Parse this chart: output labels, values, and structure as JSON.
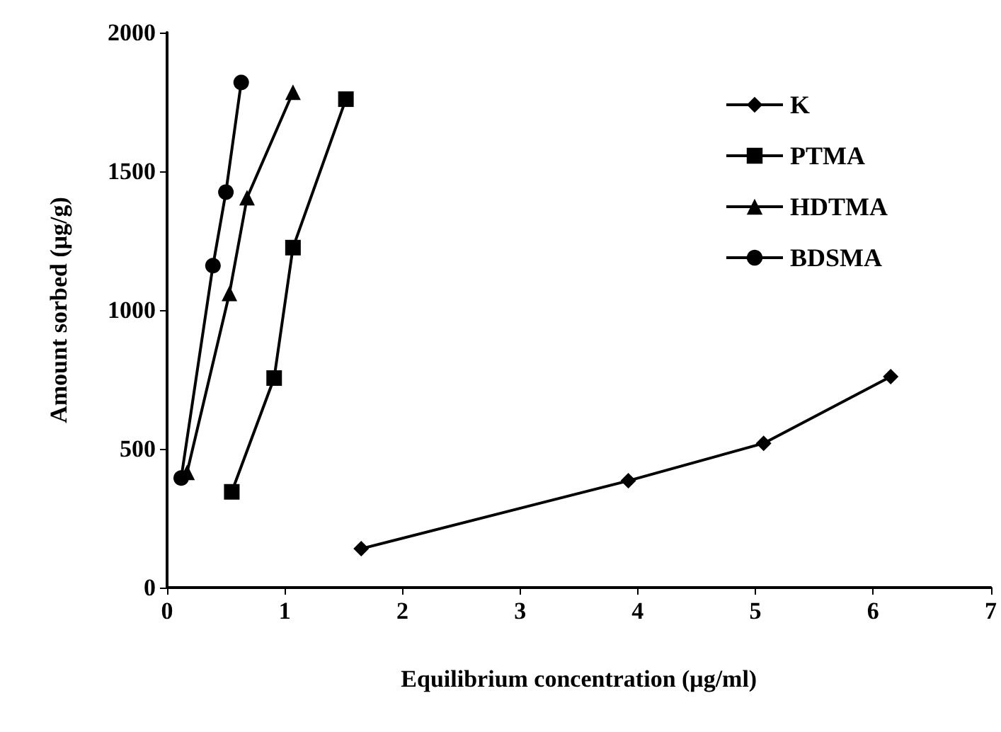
{
  "chart_data": {
    "type": "line",
    "xlabel": "Equilibrium concentration (μg/ml)",
    "ylabel": "Amount sorbed (μg/g)",
    "xlim": [
      0,
      7
    ],
    "xticks": [
      0,
      1,
      2,
      3,
      4,
      5,
      6,
      7
    ],
    "ylim": [
      0,
      2000
    ],
    "yticks": [
      0,
      500,
      1000,
      1500,
      2000
    ],
    "grid": false,
    "legend": "top right",
    "line_style": "solid",
    "series": [
      {
        "name": "K",
        "color": "#000000",
        "marker": "diamond",
        "x": [
          1.65,
          3.92,
          5.07,
          6.15
        ],
        "values": [
          140,
          385,
          520,
          760
        ]
      },
      {
        "name": "PTMA",
        "color": "#000000",
        "marker": "square",
        "x": [
          0.55,
          0.91,
          1.07,
          1.52
        ],
        "values": [
          345,
          755,
          1225,
          1760
        ]
      },
      {
        "name": "HDTMA",
        "color": "#000000",
        "marker": "triangle",
        "x": [
          0.17,
          0.53,
          0.68,
          1.07
        ],
        "values": [
          415,
          1060,
          1405,
          1785
        ]
      },
      {
        "name": "BDSMA",
        "color": "#000000",
        "marker": "circle",
        "x": [
          0.12,
          0.39,
          0.5,
          0.63
        ],
        "values": [
          395,
          1160,
          1425,
          1820
        ]
      }
    ]
  }
}
